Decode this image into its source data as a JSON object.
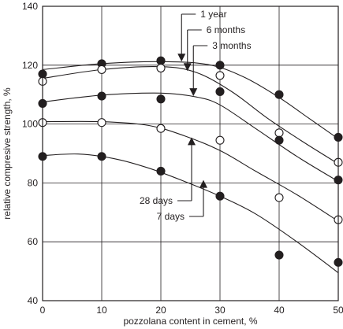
{
  "chart_data": {
    "type": "scatter",
    "xlabel": "pozzolana content in cement, %",
    "ylabel": "relative compresive strength, %",
    "xlim": [
      0,
      50
    ],
    "ylim": [
      40,
      140
    ],
    "xticks": [
      0,
      10,
      20,
      30,
      40,
      50
    ],
    "yticks": [
      40,
      60,
      80,
      100,
      120,
      140
    ],
    "grid": true,
    "series": [
      {
        "name": "1 year",
        "marker": "filled",
        "points": [
          [
            0,
            117
          ],
          [
            10,
            120.5
          ],
          [
            20,
            121.5
          ],
          [
            30,
            120
          ],
          [
            40,
            110
          ],
          [
            50,
            95.5
          ]
        ],
        "curve": [
          [
            0,
            118.5
          ],
          [
            10,
            120.5
          ],
          [
            20,
            121.2
          ],
          [
            28,
            120.2
          ],
          [
            34,
            116
          ],
          [
            40,
            109
          ],
          [
            45,
            102
          ],
          [
            50,
            95
          ]
        ]
      },
      {
        "name": "6 months",
        "marker": "open",
        "points": [
          [
            0,
            114.5
          ],
          [
            10,
            118.5
          ],
          [
            20,
            119
          ],
          [
            30,
            116.5
          ],
          [
            40,
            97
          ],
          [
            50,
            87
          ]
        ],
        "curve": [
          [
            0,
            115.5
          ],
          [
            10,
            118.5
          ],
          [
            20,
            119.5
          ],
          [
            26,
            117.5
          ],
          [
            32,
            111
          ],
          [
            38,
            102
          ],
          [
            44,
            94
          ],
          [
            50,
            86.5
          ]
        ]
      },
      {
        "name": "3 months",
        "marker": "filled",
        "points": [
          [
            0,
            107
          ],
          [
            10,
            109.5
          ],
          [
            20,
            108.5
          ],
          [
            30,
            111
          ],
          [
            40,
            94.5
          ],
          [
            50,
            81
          ]
        ],
        "curve": [
          [
            0,
            107.5
          ],
          [
            10,
            109.8
          ],
          [
            20,
            110.5
          ],
          [
            26,
            109.2
          ],
          [
            30,
            106.5
          ],
          [
            36,
            98.5
          ],
          [
            43,
            89
          ],
          [
            50,
            80.5
          ]
        ]
      },
      {
        "name": "28 days",
        "marker": "open",
        "points": [
          [
            0,
            100.5
          ],
          [
            10,
            100.5
          ],
          [
            20,
            98.5
          ],
          [
            30,
            94.5
          ],
          [
            40,
            75
          ],
          [
            50,
            67.5
          ]
        ],
        "curve": [
          [
            0,
            100.8
          ],
          [
            10,
            100.8
          ],
          [
            18,
            99.5
          ],
          [
            24,
            96
          ],
          [
            30,
            91
          ],
          [
            36,
            84
          ],
          [
            43,
            76
          ],
          [
            50,
            67
          ]
        ]
      },
      {
        "name": "7 days",
        "marker": "filled",
        "points": [
          [
            0,
            89
          ],
          [
            10,
            89
          ],
          [
            20,
            84
          ],
          [
            30,
            75.5
          ],
          [
            40,
            55.5
          ],
          [
            50,
            53
          ]
        ],
        "curve": [
          [
            0,
            89.3
          ],
          [
            6,
            89.8
          ],
          [
            12,
            88.3
          ],
          [
            18,
            85
          ],
          [
            24,
            80.5
          ],
          [
            30,
            75.5
          ],
          [
            36,
            69.5
          ],
          [
            43,
            60
          ],
          [
            50,
            49.5
          ]
        ]
      }
    ],
    "annotations": [
      {
        "label": "1 year",
        "arrow_to": [
          23.5,
          121.2
        ]
      },
      {
        "label": "6 months",
        "arrow_to": [
          24.5,
          118
        ]
      },
      {
        "label": "3 months",
        "arrow_to": [
          25.5,
          109.5
        ]
      },
      {
        "label": "28 days",
        "arrow_to": [
          25.2,
          95.5
        ]
      },
      {
        "label": "7 days",
        "arrow_to": [
          27.2,
          81
        ]
      }
    ]
  }
}
